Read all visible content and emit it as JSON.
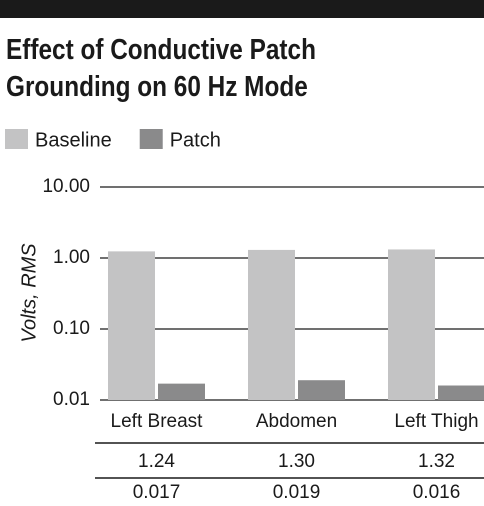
{
  "chart_data": {
    "type": "bar",
    "title": "Effect of Conductive Patch Grounding on 60 Hz Mode",
    "categories": [
      "Left Breast",
      "Abdomen",
      "Left Thigh"
    ],
    "series": [
      {
        "name": "Baseline",
        "color": "#c3c3c4",
        "values": [
          1.24,
          1.3,
          1.32
        ],
        "value_labels": [
          "1.24",
          "1.30",
          "1.32"
        ]
      },
      {
        "name": "Patch",
        "color": "#8a8a8b",
        "values": [
          0.017,
          0.019,
          0.016
        ],
        "value_labels": [
          "0.017",
          "0.019",
          "0.016"
        ]
      }
    ],
    "ylabel": "Volts, RMS",
    "ylim": [
      0.01,
      10
    ],
    "log_y": true,
    "yticks": [
      {
        "value": 10,
        "label": "10.00"
      },
      {
        "value": 1,
        "label": "1.00"
      },
      {
        "value": 0.1,
        "label": "0.10"
      },
      {
        "value": 0.01,
        "label": "0.01"
      }
    ],
    "grid": true
  }
}
